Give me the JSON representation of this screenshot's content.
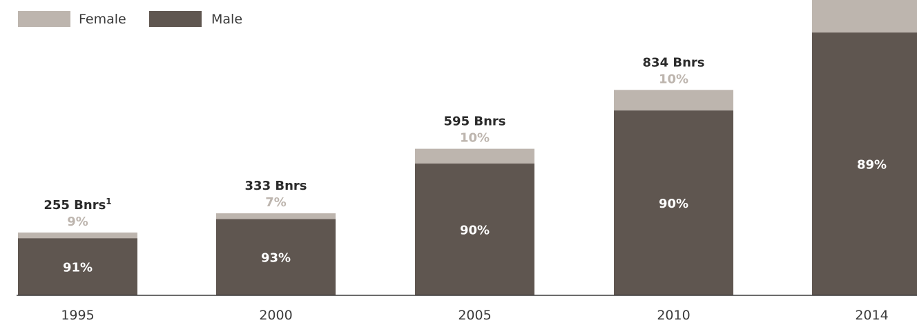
{
  "chart_data": {
    "type": "bar",
    "stacked": true,
    "categories": [
      "1995",
      "2000",
      "2005",
      "2010",
      "2014"
    ],
    "totals": [
      255,
      333,
      595,
      834,
      1199
    ],
    "total_labels": [
      "255 Bnrs",
      "333 Bnrs",
      "595 Bnrs",
      "834 Bnrs",
      ""
    ],
    "total_footnotes": [
      "1",
      "",
      "",
      "",
      ""
    ],
    "series": [
      {
        "name": "Male",
        "share_percent": [
          91,
          93,
          90,
          90,
          89
        ],
        "value_labels": [
          "91%",
          "93%",
          "90%",
          "90%",
          "89%"
        ]
      },
      {
        "name": "Female",
        "share_percent": [
          9,
          7,
          10,
          10,
          11
        ],
        "value_labels": [
          "9%",
          "7%",
          "10%",
          "10%",
          ""
        ]
      }
    ],
    "ylim": [
      0,
      1199
    ],
    "grid": false,
    "legend_position": "top-left",
    "colors": {
      "Male": "#5f5650",
      "Female": "#bdb5ae",
      "axis": "#3a3a3a"
    }
  }
}
